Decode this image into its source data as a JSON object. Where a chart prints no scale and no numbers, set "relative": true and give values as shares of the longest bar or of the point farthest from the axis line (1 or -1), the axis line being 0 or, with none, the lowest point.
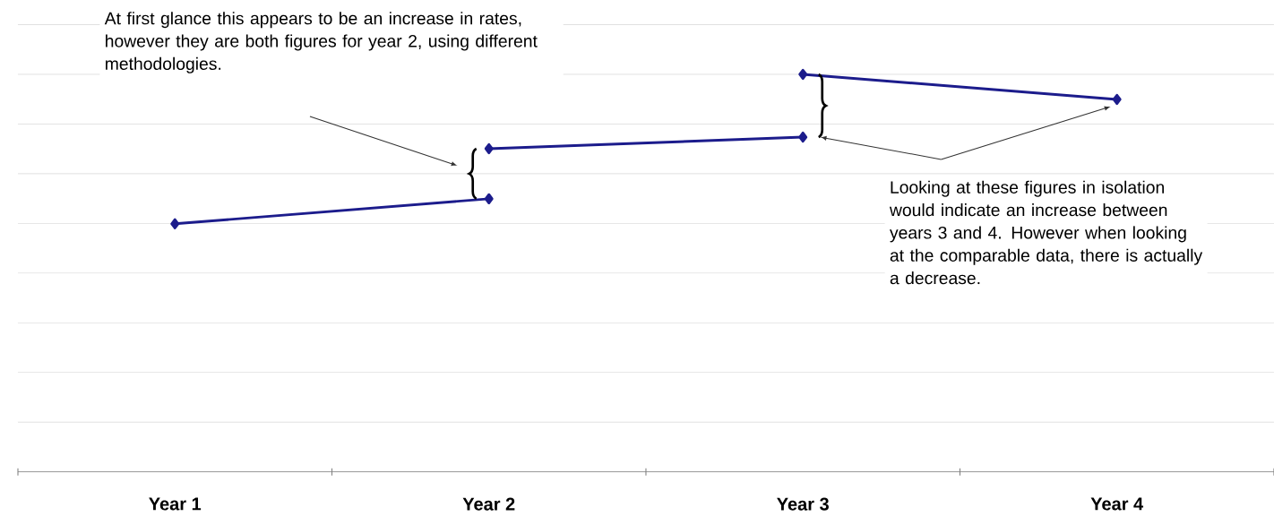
{
  "chart_data": {
    "type": "line",
    "relative": true,
    "grid": "y",
    "marker": "diamond",
    "line_style": "solid",
    "categories": [
      "Year 1",
      "Year 2",
      "Year 3",
      "Year 4"
    ],
    "series": [
      {
        "color": "#1c1c8c",
        "values": [
          0.624,
          0.687,
          null,
          null
        ]
      },
      {
        "color": "#1c1c8c",
        "values": [
          null,
          0.813,
          0.842,
          null
        ]
      },
      {
        "color": "#1c1c8c",
        "values": [
          null,
          null,
          1,
          0.937
        ]
      }
    ],
    "annotations": [
      "At first glance this appears to be an increase in rates, however they are both figures for year 2, using different methodologies.",
      "Looking at these figures in isolation would indicate an increase between years 3 and 4. However when looking at the comparable data, there is actually a decrease."
    ]
  }
}
